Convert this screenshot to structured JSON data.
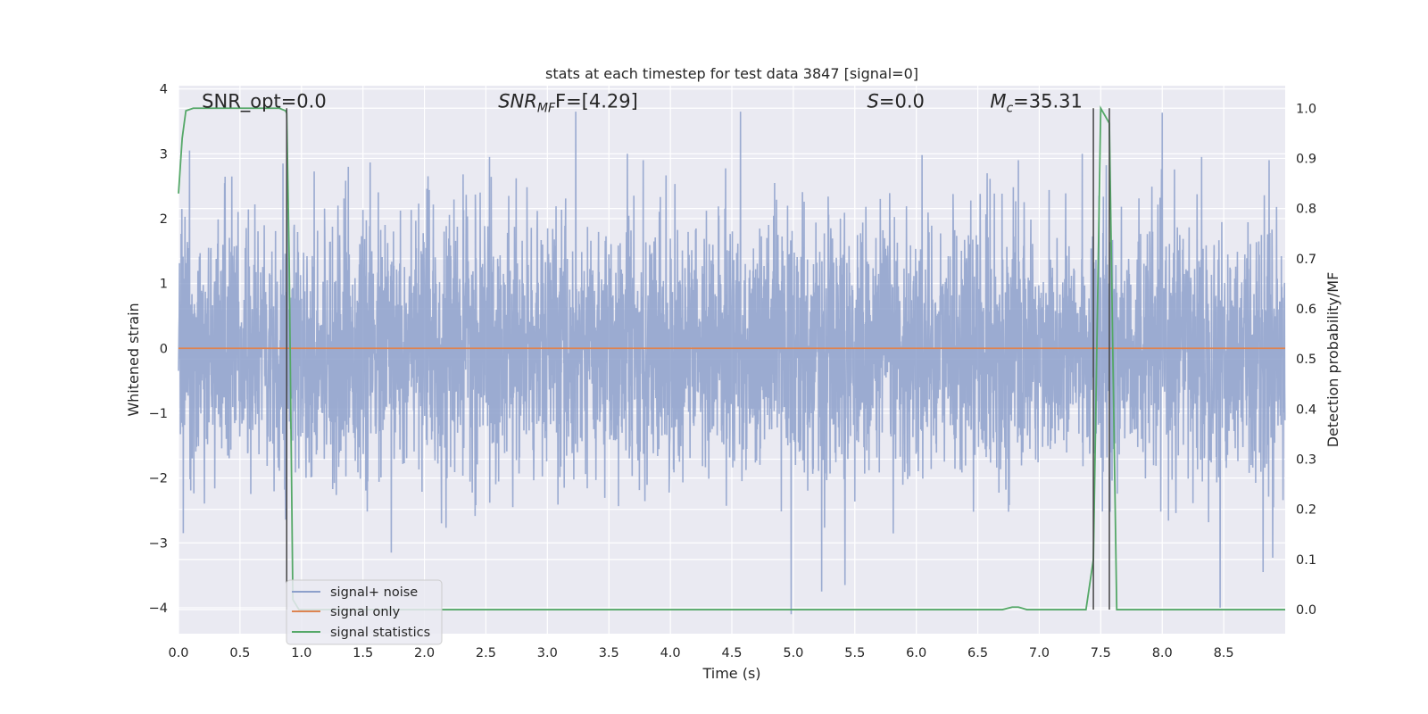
{
  "chart_data": {
    "type": "line",
    "title": "stats at each timestep for test data 3847 [signal=0]",
    "xlabel": "Time (s)",
    "ylabel": "Whitened strain",
    "y2label": "Detection probability/MF",
    "xlim": [
      0.0,
      9.0
    ],
    "ylim": [
      -4.4,
      4.05
    ],
    "y2lim": [
      -0.048,
      1.045
    ],
    "xticks": [
      "0.0",
      "0.5",
      "1.0",
      "1.5",
      "2.0",
      "2.5",
      "3.0",
      "3.5",
      "4.0",
      "4.5",
      "5.0",
      "5.5",
      "6.0",
      "6.5",
      "7.0",
      "7.5",
      "8.0",
      "8.5"
    ],
    "yticks": [
      "4",
      "3",
      "2",
      "1",
      "0",
      "−1",
      "−2",
      "−3",
      "−4"
    ],
    "y2ticks": [
      "1.0",
      "0.9",
      "0.8",
      "0.7",
      "0.6",
      "0.5",
      "0.4",
      "0.3",
      "0.2",
      "0.1",
      "0.0"
    ],
    "grid": true,
    "legend_position": "lower-left",
    "annotations": [
      {
        "text": "SNR_opt=0.0",
        "x": 0.19
      },
      {
        "text": "SNR",
        "sub": "MF",
        "suffix": "F=[4.29]",
        "x": 2.6,
        "italic_prefix": true
      },
      {
        "text": "S",
        "suffix": "=0.0",
        "x": 5.6,
        "italic_prefix": true
      },
      {
        "text": "M",
        "sub": "c",
        "suffix": "=35.31",
        "x": 6.6,
        "italic_prefix": true
      }
    ],
    "vlines_seconds": [
      0.88,
      7.44,
      7.57
    ],
    "series": [
      {
        "name": "signal+ noise",
        "color": "#8da0cb",
        "kind": "noise",
        "sample_rate": 512,
        "duration": 9.0,
        "sigma": 0.95,
        "spikes": [
          {
            "x": 0.09,
            "y": 3.05
          },
          {
            "x": 0.04,
            "y": -2.85
          },
          {
            "x": 0.85,
            "y": 2.85
          },
          {
            "x": 1.38,
            "y": 2.8
          },
          {
            "x": 1.73,
            "y": -3.15
          },
          {
            "x": 3.23,
            "y": 3.65
          },
          {
            "x": 4.57,
            "y": 3.65
          },
          {
            "x": 3.65,
            "y": 3.0
          },
          {
            "x": 5.23,
            "y": -3.75
          },
          {
            "x": 5.42,
            "y": -3.65
          },
          {
            "x": 7.35,
            "y": 3.0
          },
          {
            "x": 8.47,
            "y": -4.0
          },
          {
            "x": 8.32,
            "y": 2.95
          },
          {
            "x": 8.87,
            "y": 2.9
          },
          {
            "x": 8.82,
            "y": -3.45
          },
          {
            "x": 3.78,
            "y": 2.9
          },
          {
            "x": 6.83,
            "y": 2.9
          },
          {
            "x": 2.53,
            "y": 2.95
          }
        ]
      },
      {
        "name": "signal only",
        "color": "#dd8452",
        "kind": "line",
        "x": [
          0.0,
          9.0
        ],
        "y": [
          0.0,
          0.0
        ]
      },
      {
        "name": "signal statistics",
        "color": "#55a868",
        "kind": "line",
        "axis": "right",
        "x": [
          0.0,
          0.03,
          0.06,
          0.12,
          0.2,
          0.5,
          0.7,
          0.82,
          0.87,
          0.88,
          0.9,
          0.93,
          0.98,
          6.7,
          6.78,
          6.83,
          6.9,
          7.38,
          7.44,
          7.5,
          7.57,
          7.63,
          7.75,
          9.0
        ],
        "y": [
          0.83,
          0.94,
          0.995,
          1.0,
          1.0,
          1.0,
          1.0,
          1.0,
          0.995,
          0.99,
          0.7,
          0.02,
          0.0,
          0.0,
          0.005,
          0.005,
          0.0,
          0.0,
          0.1,
          1.0,
          0.97,
          0.0,
          0.0,
          0.0
        ]
      }
    ]
  }
}
